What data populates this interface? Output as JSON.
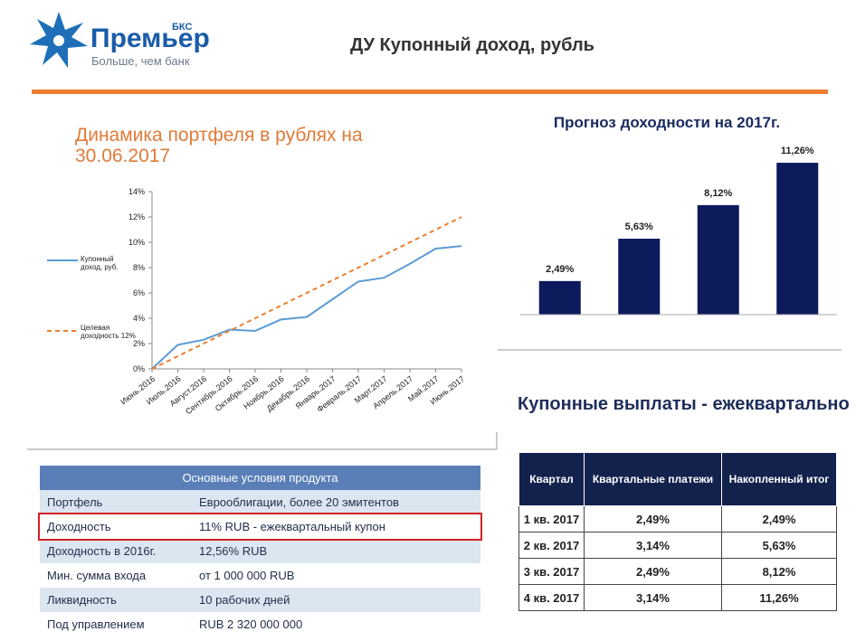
{
  "header": {
    "brand": "Премьер",
    "brand_mark": "БКС",
    "tagline": "Больше, чем банк",
    "title": "ДУ Купонный доход, рубль"
  },
  "chart_data": [
    {
      "type": "line",
      "title": "Динамика портфеля в рублях на 30.06.2017",
      "categories": [
        "Июнь.2016",
        "Июль.2016",
        "Август.2016",
        "Сентябрь.2016",
        "Октябрь.2016",
        "Ноябрь.2016",
        "Декабрь.2016",
        "Январь.2017",
        "Февраль.2017",
        "Март.2017",
        "Апрель.2017",
        "Май.2017",
        "Июнь.2017"
      ],
      "series": [
        {
          "name": "Купонный доход, руб.",
          "color": "#5b9bd5",
          "line_style": "solid",
          "values": [
            0,
            1.9,
            2.3,
            3.1,
            3.0,
            3.9,
            4.1,
            5.5,
            6.9,
            7.2,
            8.3,
            9.5,
            9.7
          ]
        },
        {
          "name": "Целевая доходность 12%",
          "color": "#ed7d31",
          "line_style": "dashed",
          "values": [
            0,
            1,
            2,
            3,
            4,
            5,
            6,
            7,
            8,
            9,
            10,
            11,
            12
          ]
        }
      ],
      "ylim": [
        0,
        14
      ],
      "yticks": [
        {
          "value": 0,
          "label": "0%"
        },
        {
          "value": 2,
          "label": "2%"
        },
        {
          "value": 4,
          "label": "4%"
        },
        {
          "value": 6,
          "label": "6%"
        },
        {
          "value": 8,
          "label": "8%"
        },
        {
          "value": 10,
          "label": "10%"
        },
        {
          "value": 12,
          "label": "12%"
        },
        {
          "value": 14,
          "label": "14%"
        }
      ],
      "legend": "left",
      "grid": false
    },
    {
      "type": "bar",
      "title": "Прогноз доходности на 2017г.",
      "categories": [
        null,
        null,
        null,
        null
      ],
      "values": [
        2.49,
        5.63,
        8.12,
        11.26
      ],
      "value_labels": [
        "2,49%",
        "5,63%",
        "8,12%",
        "11,26%"
      ],
      "color": "#0d1a5c",
      "ylim": [
        0,
        12
      ]
    }
  ],
  "product_table": {
    "title": "Основные условия продукта",
    "highlighted_row": 1,
    "rows": [
      [
        "Портфель",
        "Еврооблигации, более 20 эмитентов"
      ],
      [
        "Доходность",
        "11% RUB - ежеквартальный купон"
      ],
      [
        "Доходность в 2016г.",
        "12,56% RUB"
      ],
      [
        "Мин. сумма входа",
        "от 1 000 000 RUB"
      ],
      [
        "Ликвидность",
        "10 рабочих дней"
      ],
      [
        "Под управлением",
        "RUB 2 320 000 000"
      ]
    ]
  },
  "payments_table": {
    "title": "Купонные выплаты - ежеквартально",
    "header": [
      "Квартал",
      "Квартальные платежи",
      "Накопленный итог"
    ],
    "rows": [
      [
        "1 кв. 2017",
        "2,49%",
        "2,49%"
      ],
      [
        "2 кв. 2017",
        "3,14%",
        "5,63%"
      ],
      [
        "3 кв. 2017",
        "2,49%",
        "8,12%"
      ],
      [
        "4 кв. 2017",
        "3,14%",
        "11,26%"
      ]
    ]
  }
}
